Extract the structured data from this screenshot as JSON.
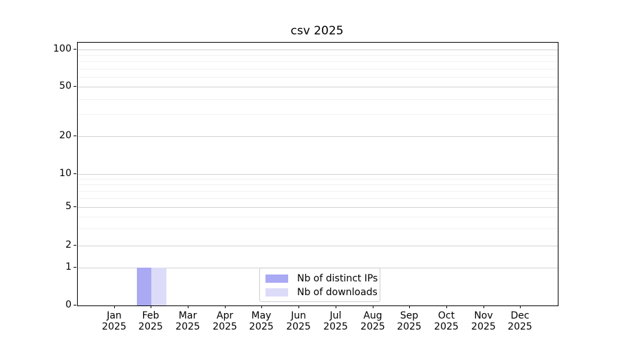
{
  "chart_data": {
    "type": "bar",
    "title": "csv 2025",
    "categories": [
      "Jan",
      "Feb",
      "Mar",
      "Apr",
      "May",
      "Jun",
      "Jul",
      "Aug",
      "Sep",
      "Oct",
      "Nov",
      "Dec"
    ],
    "x_year": "2025",
    "series": [
      {
        "name": "Nb of distinct IPs",
        "color": "#a9a9f4",
        "values": [
          0,
          1,
          0,
          0,
          0,
          0,
          0,
          0,
          0,
          0,
          0,
          0
        ]
      },
      {
        "name": "Nb of downloads",
        "color": "#dcdcf9",
        "values": [
          0,
          1,
          0,
          0,
          0,
          0,
          0,
          0,
          0,
          0,
          0,
          0
        ]
      }
    ],
    "xlabel": "",
    "ylabel": "",
    "y_ticks": [
      0,
      1,
      2,
      5,
      10,
      20,
      50,
      100
    ],
    "yscale": "symlog",
    "ylim": [
      0,
      115
    ],
    "grid": "both",
    "legend_position": "lower center",
    "colors": {
      "major_grid": "#d2d2d2",
      "minor_grid": "#f1f1f1",
      "axis": "#000000",
      "text": "#000000"
    }
  }
}
